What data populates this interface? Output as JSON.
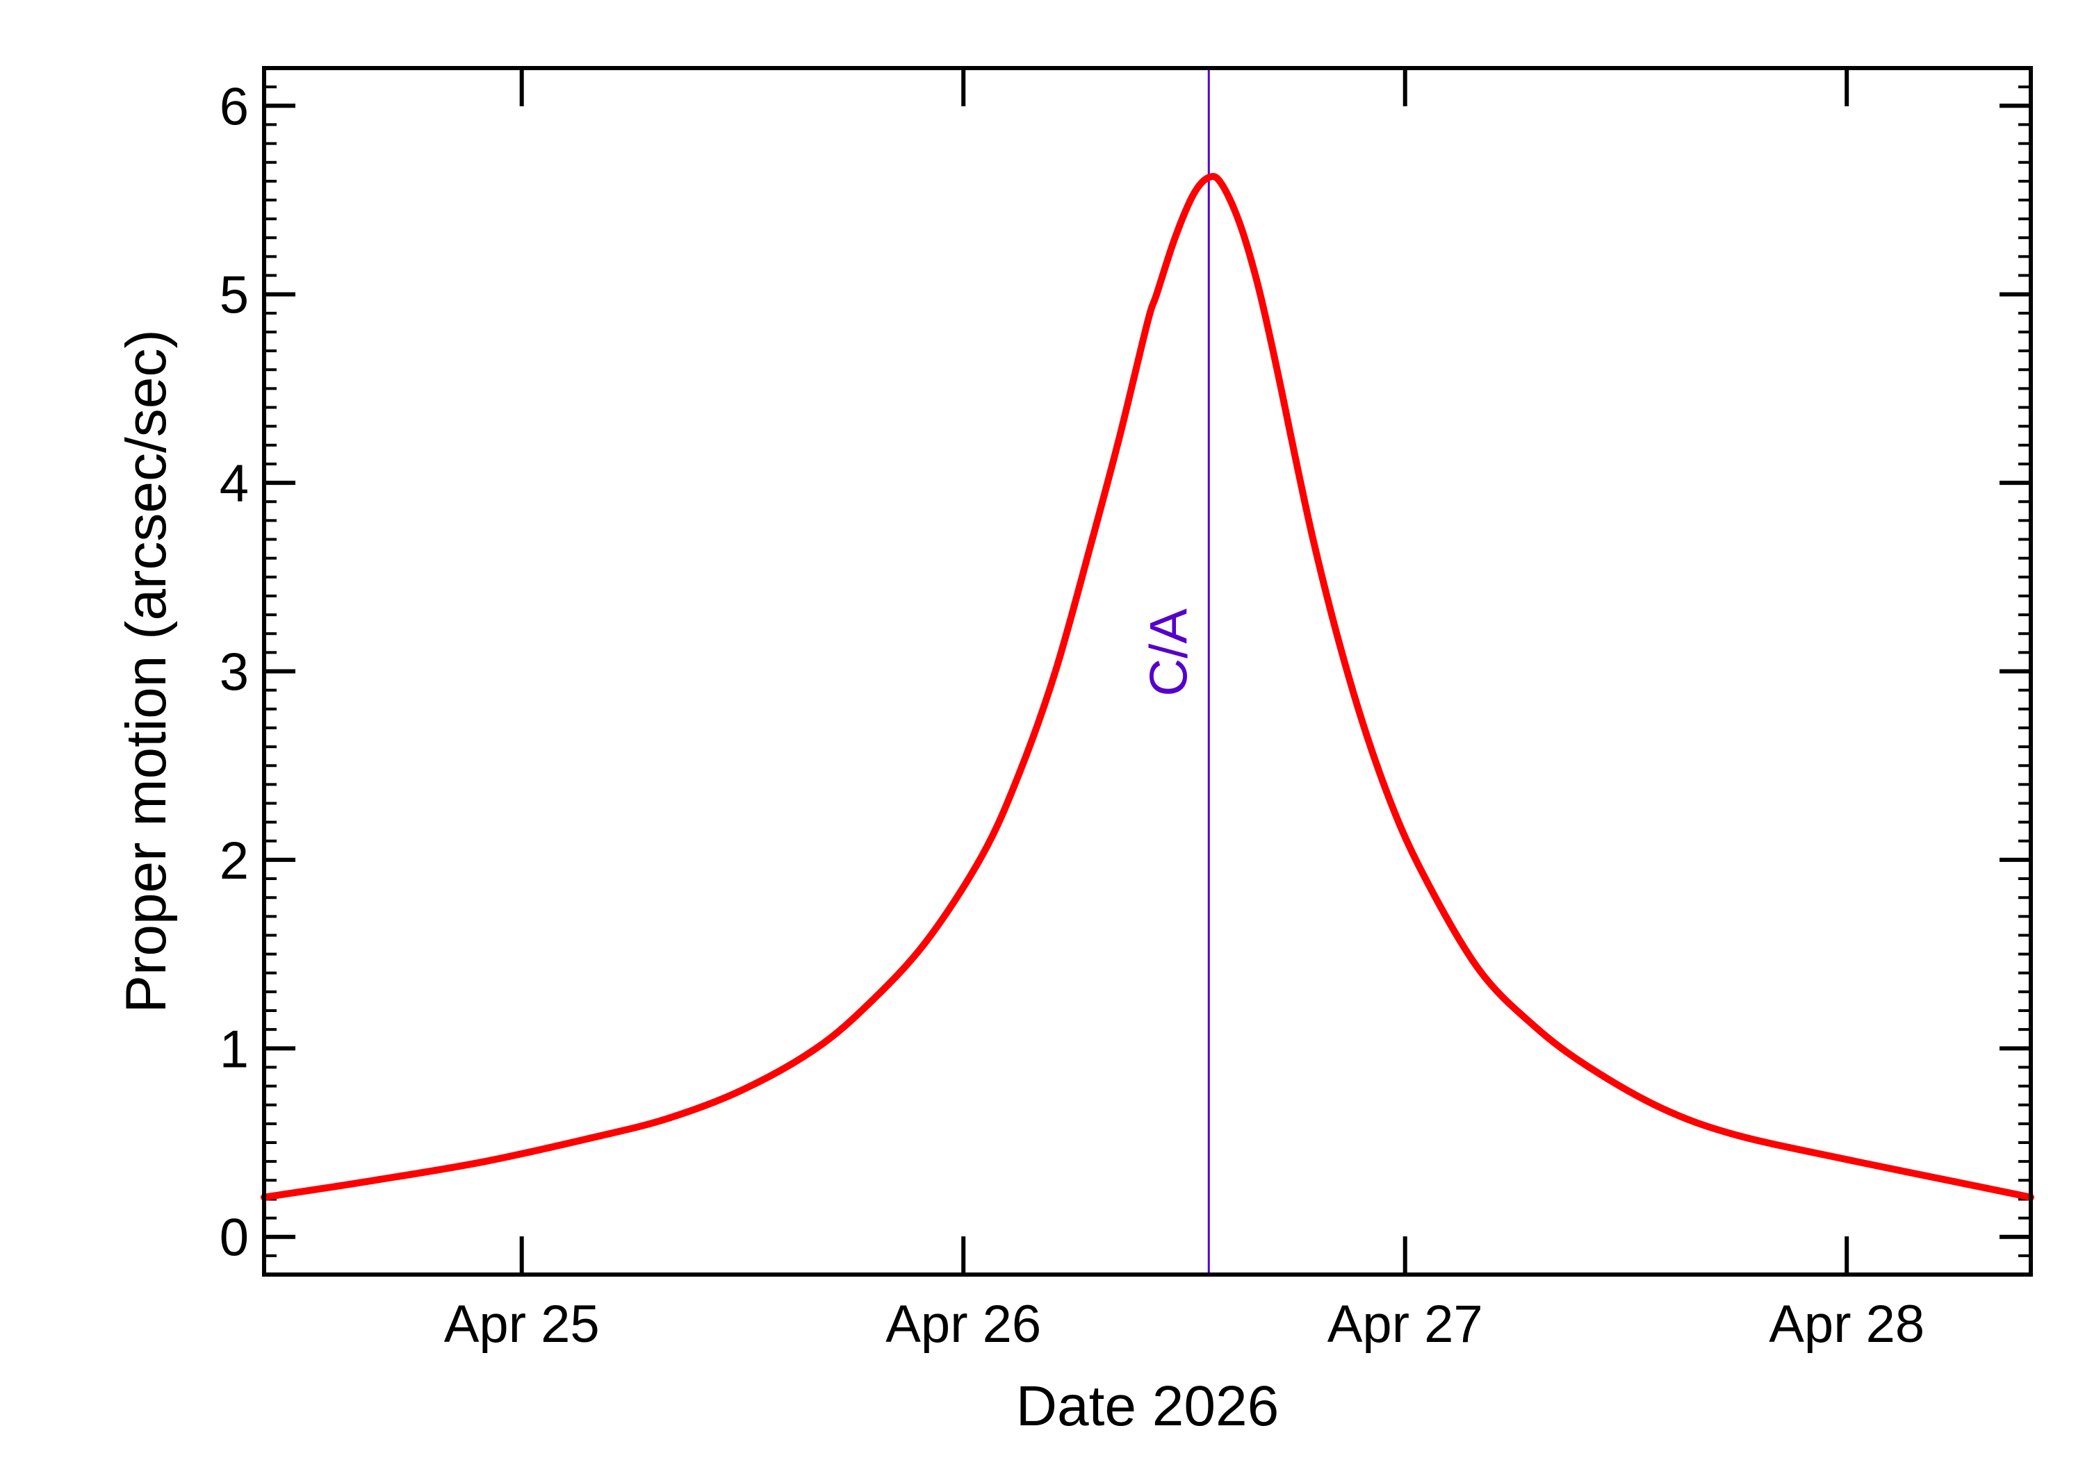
{
  "chart_data": {
    "type": "line",
    "xlabel": "Date 2026",
    "ylabel": "Proper motion (arcsec/sec)",
    "x_unit": "date",
    "xlim": [
      "2026-04-24 10:00",
      "2026-04-28 10:00"
    ],
    "ylim": [
      -0.2,
      6.2
    ],
    "x_ticks": [
      {
        "date": "2026-04-25 00:00",
        "label": "Apr 25"
      },
      {
        "date": "2026-04-26 00:00",
        "label": "Apr 26"
      },
      {
        "date": "2026-04-27 00:00",
        "label": "Apr 27"
      },
      {
        "date": "2026-04-28 00:00",
        "label": "Apr 28"
      }
    ],
    "y_ticks": [
      0,
      1,
      2,
      3,
      4,
      5,
      6
    ],
    "y_tick_labels": [
      "0",
      "1",
      "2",
      "3",
      "4",
      "5",
      "6"
    ],
    "grid": false,
    "series": [
      {
        "color": "#ff0000",
        "points": [
          [
            "2026-04-24 10:00",
            0.21
          ],
          [
            "2026-04-24 16:00",
            0.3
          ],
          [
            "2026-04-24 22:00",
            0.4
          ],
          [
            "2026-04-25 04:00",
            0.53
          ],
          [
            "2026-04-25 08:00",
            0.63
          ],
          [
            "2026-04-25 12:00",
            0.78
          ],
          [
            "2026-04-25 16:00",
            1.0
          ],
          [
            "2026-04-25 19:00",
            1.25
          ],
          [
            "2026-04-25 22:00",
            1.57
          ],
          [
            "2026-04-26 01:00",
            2.02
          ],
          [
            "2026-04-26 03:00",
            2.45
          ],
          [
            "2026-04-26 05:00",
            3.0
          ],
          [
            "2026-04-26 07:00",
            3.7
          ],
          [
            "2026-04-26 08:30",
            4.25
          ],
          [
            "2026-04-26 10:00",
            4.85
          ],
          [
            "2026-04-26 10:30",
            5.0
          ],
          [
            "2026-04-26 11:30",
            5.3
          ],
          [
            "2026-04-26 12:30",
            5.53
          ],
          [
            "2026-04-26 13:20",
            5.62
          ],
          [
            "2026-04-26 14:00",
            5.59
          ],
          [
            "2026-04-26 15:00",
            5.38
          ],
          [
            "2026-04-26 16:00",
            5.05
          ],
          [
            "2026-04-26 17:00",
            4.62
          ],
          [
            "2026-04-26 19:00",
            3.7
          ],
          [
            "2026-04-26 21:00",
            2.95
          ],
          [
            "2026-04-26 23:00",
            2.36
          ],
          [
            "2026-04-27 01:00",
            1.92
          ],
          [
            "2026-04-27 04:00",
            1.42
          ],
          [
            "2026-04-27 07:00",
            1.12
          ],
          [
            "2026-04-27 10:00",
            0.9
          ],
          [
            "2026-04-27 14:00",
            0.68
          ],
          [
            "2026-04-27 18:00",
            0.54
          ],
          [
            "2026-04-28 00:00",
            0.41
          ],
          [
            "2026-04-28 05:00",
            0.31
          ],
          [
            "2026-04-28 10:00",
            0.21
          ]
        ]
      }
    ],
    "annotation": {
      "label": "C/A",
      "date": "2026-04-26 13:20",
      "color": "#5500cc"
    }
  }
}
